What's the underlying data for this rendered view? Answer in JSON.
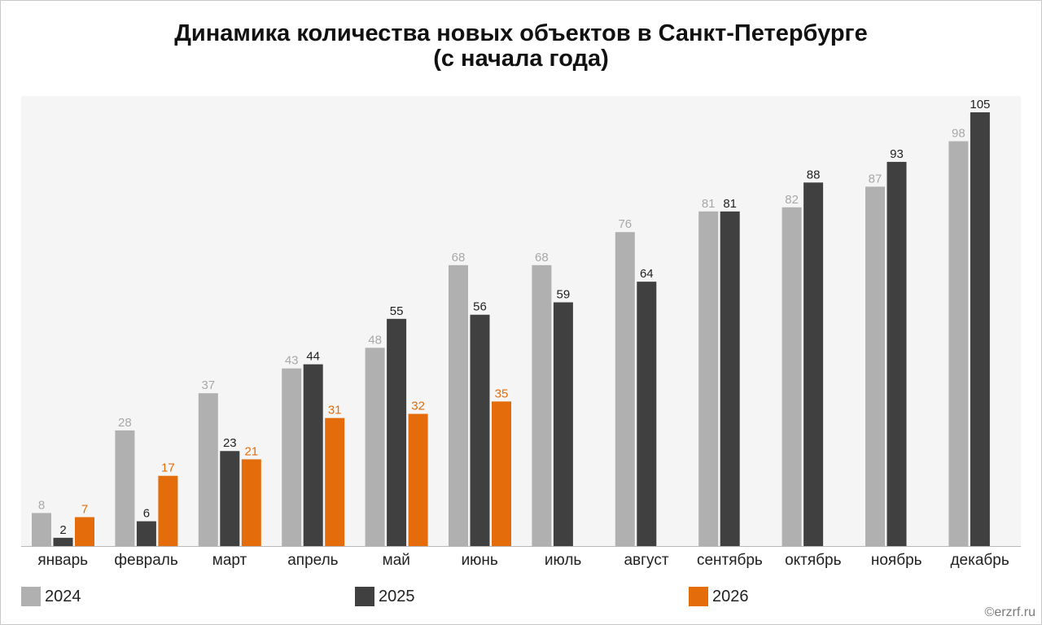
{
  "title_line1": "Динамика количества новых объектов в Санкт-Петербурге",
  "title_line2": "(с начала года)",
  "credit": "©erzrf.ru",
  "colors": {
    "plot_bg": "#f5f5f5",
    "axis": "#b8b8b8",
    "s2024": "#b0b0b0",
    "s2025": "#404040",
    "s2026": "#e46c0a"
  },
  "chart_data": {
    "type": "bar",
    "title": "Динамика количества новых объектов в Санкт-Петербурге (с начала года)",
    "categories": [
      "январь",
      "февраль",
      "март",
      "апрель",
      "май",
      "июнь",
      "июль",
      "август",
      "сентябрь",
      "октябрь",
      "ноябрь",
      "декабрь"
    ],
    "series": [
      {
        "name": "2024",
        "color": "#b0b0b0",
        "label_color": "#a8a8a8",
        "values": [
          8,
          28,
          37,
          43,
          48,
          68,
          68,
          76,
          81,
          82,
          87,
          98
        ]
      },
      {
        "name": "2025",
        "color": "#404040",
        "label_color": "#222222",
        "values": [
          2,
          6,
          23,
          44,
          55,
          56,
          59,
          64,
          81,
          88,
          93,
          105
        ]
      },
      {
        "name": "2026",
        "color": "#e46c0a",
        "label_color": "#e46c0a",
        "values": [
          7,
          17,
          21,
          31,
          32,
          35,
          null,
          null,
          null,
          null,
          null,
          null
        ]
      }
    ],
    "ylim": [
      0,
      105
    ],
    "grid": false,
    "legend_position": "bottom"
  }
}
